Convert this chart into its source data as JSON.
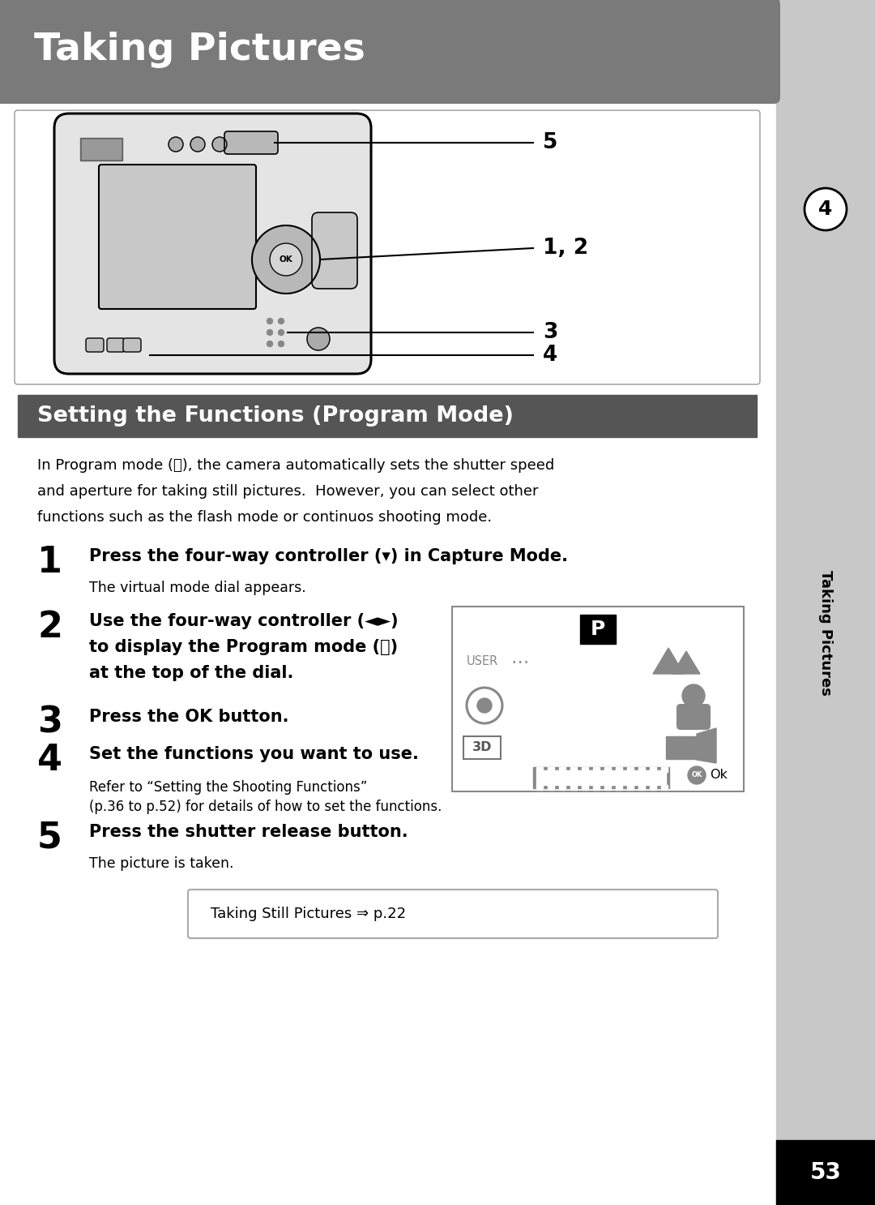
{
  "page_bg": "#ffffff",
  "header_bg": "#7a7a7a",
  "header_text": "Taking Pictures",
  "header_text_color": "#ffffff",
  "section_bg": "#555555",
  "section_text": "Setting the Functions (Program Mode)",
  "section_text_color": "#ffffff",
  "sidebar_bg": "#c8c8c8",
  "sidebar_text": "Taking Pictures",
  "sidebar_number": "4",
  "page_number": "53",
  "body_line1": "In Program mode (Ⓟ), the camera automatically sets the shutter speed",
  "body_line2": "and aperture for taking still pictures.  However, you can select other",
  "body_line3": "functions such as the flash mode or continuos shooting mode.",
  "step1_num": "1",
  "step1_bold": "Press the four-way controller (▾) in Capture Mode.",
  "step1_sub": "The virtual mode dial appears.",
  "step2_num": "2",
  "step2_line1": "Use the four-way controller (◄►)",
  "step2_line2": "to display the Program mode (Ⓟ)",
  "step2_line3": "at the top of the dial.",
  "step3_num": "3",
  "step3_bold": "Press the OK button.",
  "step4_num": "4",
  "step4_bold": "Set the functions you want to use.",
  "step4_sub1": "Refer to “Setting the Shooting Functions”",
  "step4_sub2": "(p.36 to p.52) for details of how to set the functions.",
  "step5_num": "5",
  "step5_bold": "Press the shutter release button.",
  "step5_sub": "The picture is taken.",
  "ref_text": "Taking Still Pictures ⇒ p.22",
  "cam_label5": "5",
  "cam_label12": "1, 2",
  "cam_label3": "3",
  "cam_label4": "4"
}
